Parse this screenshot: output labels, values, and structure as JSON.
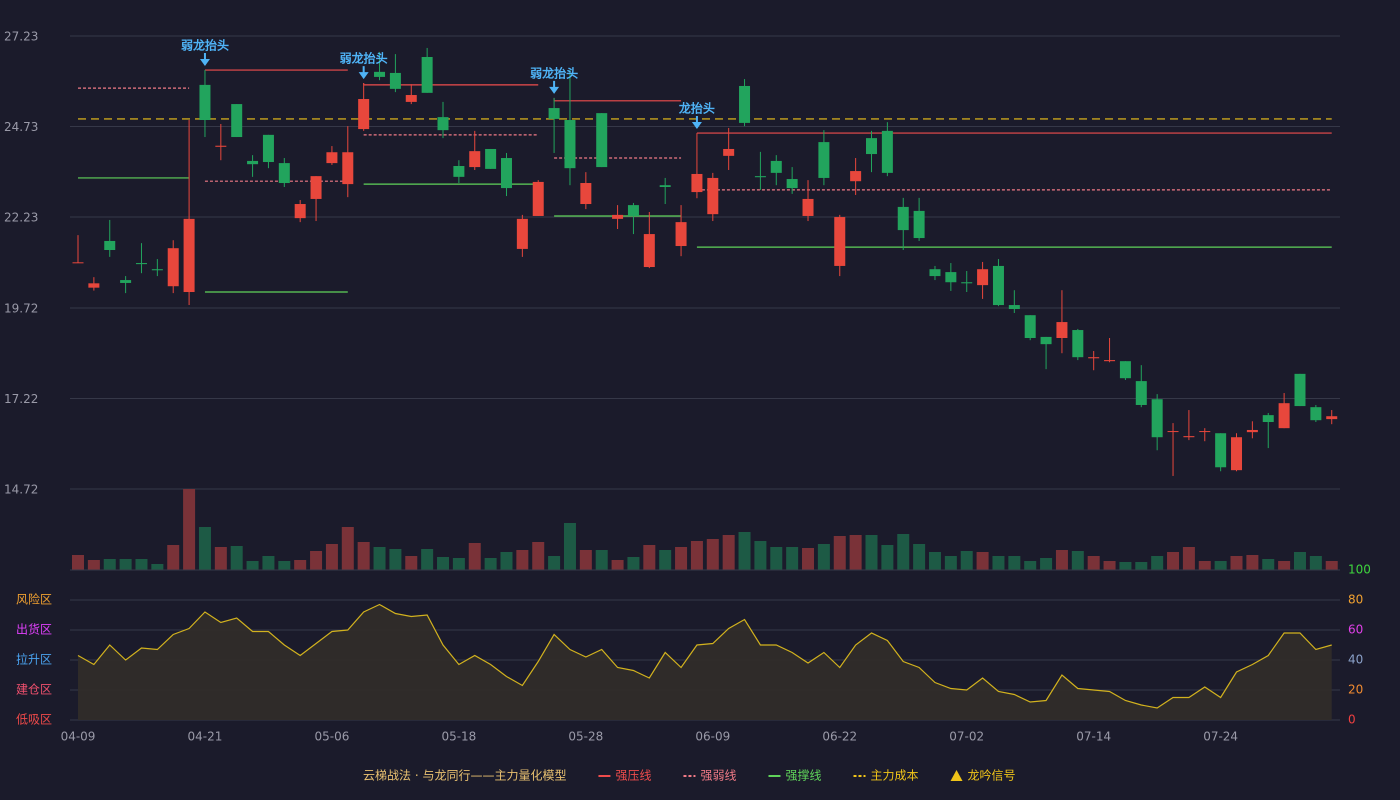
{
  "chart_data": [
    {
      "type": "candlestick",
      "categories": [
        "04-09",
        null,
        null,
        null,
        null,
        null,
        null,
        null,
        "04-21",
        null,
        null,
        null,
        null,
        null,
        null,
        null,
        "05-06",
        null,
        null,
        null,
        null,
        null,
        null,
        null,
        "05-18",
        null,
        null,
        null,
        null,
        null,
        null,
        null,
        "05-28",
        null,
        null,
        null,
        null,
        null,
        null,
        null,
        "06-09",
        null,
        null,
        null,
        null,
        null,
        null,
        null,
        "06-22",
        null,
        null,
        null,
        null,
        null,
        null,
        null,
        "07-02",
        null,
        null,
        null,
        null,
        null,
        null,
        null,
        "07-14",
        null,
        null,
        null,
        null,
        null,
        null,
        null,
        "07-24",
        null,
        null,
        null,
        null,
        null,
        null,
        null
      ],
      "open": [
        20.96,
        20.28,
        21.57,
        20.49,
        20.96,
        20.79,
        20.32,
        20.16,
        25.88,
        24.17,
        25.35,
        23.78,
        24.5,
        23.72,
        22.2,
        22.73,
        23.72,
        23.14,
        24.66,
        26.24,
        26.21,
        25.41,
        26.65,
        24.99,
        23.64,
        23.61,
        24.11,
        23.86,
        21.35,
        22.26,
        25.24,
        24.91,
        22.59,
        25.1,
        22.18,
        22.56,
        20.85,
        23.11,
        21.43,
        22.92,
        22.31,
        23.92,
        25.85,
        23.36,
        23.78,
        23.28,
        22.26,
        24.3,
        20.88,
        23.22,
        24.41,
        24.61,
        22.51,
        22.4,
        20.79,
        20.71,
        20.43,
        20.35,
        20.88,
        19.8,
        19.52,
        18.92,
        18.89,
        19.11,
        18.33,
        18.25,
        18.25,
        17.7,
        17.2,
        16.3,
        16.15,
        16.3,
        16.26,
        15.24,
        16.29,
        16.76,
        16.4,
        17.9,
        16.98,
        16.65
      ],
      "high": [
        21.73,
        20.57,
        22.15,
        20.6,
        21.51,
        21.07,
        21.59,
        24.91,
        26.29,
        24.8,
        25.35,
        23.94,
        24.5,
        23.86,
        22.7,
        23.36,
        24.19,
        24.74,
        25.93,
        26.79,
        26.73,
        25.9,
        26.9,
        25.41,
        23.8,
        24.61,
        24.11,
        24.0,
        22.29,
        23.25,
        25.52,
        26.29,
        23.47,
        25.1,
        22.56,
        22.62,
        22.37,
        23.31,
        22.56,
        24.55,
        23.45,
        24.69,
        26.04,
        24.03,
        23.94,
        23.61,
        23.25,
        24.63,
        22.29,
        23.86,
        24.61,
        24.85,
        22.76,
        22.76,
        20.88,
        20.96,
        20.74,
        20.99,
        21.07,
        20.21,
        19.52,
        18.92,
        20.21,
        19.14,
        18.53,
        18.89,
        18.25,
        18.14,
        17.34,
        16.54,
        16.9,
        16.4,
        16.26,
        16.26,
        16.59,
        16.82,
        17.37,
        17.9,
        17.04,
        16.9
      ],
      "low": [
        20.96,
        20.2,
        21.13,
        20.13,
        20.68,
        20.6,
        20.13,
        19.8,
        24.44,
        23.8,
        24.44,
        23.34,
        23.58,
        23.06,
        22.09,
        22.12,
        23.67,
        22.78,
        24.61,
        26.01,
        25.68,
        25.35,
        25.66,
        24.41,
        23.17,
        23.53,
        23.56,
        22.81,
        21.13,
        22.26,
        24.0,
        23.11,
        22.45,
        23.61,
        21.9,
        21.76,
        20.82,
        22.59,
        21.15,
        22.75,
        22.12,
        23.53,
        24.74,
        22.98,
        23.11,
        22.87,
        22.12,
        23.11,
        20.6,
        22.84,
        23.47,
        23.36,
        21.32,
        21.57,
        20.49,
        20.19,
        20.16,
        19.97,
        19.77,
        19.58,
        18.83,
        18.03,
        18.47,
        18.28,
        18.0,
        18.22,
        17.73,
        16.98,
        15.79,
        15.08,
        16.07,
        16.04,
        15.21,
        15.21,
        16.12,
        15.85,
        16.4,
        17.01,
        16.57,
        16.51
      ],
      "close": [
        20.98,
        20.4,
        21.32,
        20.41,
        20.93,
        20.76,
        21.37,
        22.18,
        24.91,
        24.2,
        24.44,
        23.69,
        23.75,
        23.17,
        22.59,
        23.36,
        24.02,
        24.02,
        25.49,
        26.1,
        25.77,
        25.6,
        25.66,
        24.63,
        23.34,
        24.05,
        23.56,
        23.03,
        22.18,
        23.2,
        24.94,
        23.58,
        23.17,
        23.61,
        22.29,
        22.26,
        21.76,
        23.06,
        22.09,
        23.42,
        23.31,
        24.11,
        24.83,
        23.33,
        23.45,
        23.03,
        22.73,
        23.31,
        22.23,
        23.5,
        23.97,
        23.45,
        21.87,
        21.65,
        20.6,
        20.43,
        20.4,
        20.79,
        19.8,
        19.69,
        18.89,
        18.72,
        19.33,
        18.36,
        18.36,
        18.28,
        17.78,
        17.04,
        16.15,
        16.32,
        16.18,
        16.32,
        15.32,
        16.15,
        16.35,
        16.57,
        17.09,
        17.01,
        16.62,
        16.73
      ],
      "up_color": "#e8473c",
      "down_color": "#22a45d",
      "ylim": [
        14.72,
        27.23
      ],
      "yticks": [
        14.72,
        17.22,
        19.72,
        22.23,
        24.73,
        27.23
      ],
      "grid": true,
      "levels": [
        {
          "name": "强压线",
          "color": "#ef4c4c",
          "dashed": false,
          "connect": true,
          "segments": [
            {
              "start": 8,
              "end": 17,
              "value": 26.29
            },
            {
              "start": 18,
              "end": 29,
              "value": 25.88
            },
            {
              "start": 30,
              "end": 38,
              "value": 25.44
            },
            {
              "start": 39,
              "end": 79,
              "value": 24.55
            }
          ]
        },
        {
          "name": "强弱线",
          "color": "#f07a86",
          "dashed": true,
          "connect": false,
          "segments": [
            {
              "start": 0,
              "end": 7,
              "value": 25.79
            },
            {
              "start": 8,
              "end": 17,
              "value": 23.22
            },
            {
              "start": 18,
              "end": 29,
              "value": 24.5
            },
            {
              "start": 30,
              "end": 38,
              "value": 23.86
            },
            {
              "start": 39,
              "end": 79,
              "value": 22.98
            }
          ]
        },
        {
          "name": "强撑线",
          "color": "#5fd35a",
          "dashed": false,
          "connect": false,
          "segments": [
            {
              "start": 0,
              "end": 7,
              "value": 23.31
            },
            {
              "start": 8,
              "end": 17,
              "value": 20.16
            },
            {
              "start": 18,
              "end": 29,
              "value": 23.14
            },
            {
              "start": 30,
              "end": 38,
              "value": 22.26
            },
            {
              "start": 39,
              "end": 79,
              "value": 21.4
            }
          ]
        },
        {
          "name": "主力成本",
          "color": "#f0c419",
          "dashed": true,
          "connect": false,
          "segments": [
            {
              "start": 0,
              "end": 79,
              "value": 24.94
            }
          ]
        }
      ],
      "signals": {
        "name": "龙吟信号",
        "legend_color": "#f0c419",
        "color": "#4fb3f6",
        "points": [
          {
            "index": 8,
            "label": "弱龙抬头"
          },
          {
            "index": 18,
            "label": "弱龙抬头"
          },
          {
            "index": 30,
            "label": "弱龙抬头"
          },
          {
            "index": 39,
            "label": "龙抬头"
          }
        ]
      }
    },
    {
      "type": "bar",
      "values": [
        15,
        10,
        11,
        11,
        11,
        6,
        25,
        81,
        43,
        23,
        24,
        9,
        14,
        9,
        10,
        19,
        26,
        43,
        28,
        23,
        21,
        14,
        21,
        13,
        12,
        27,
        12,
        18,
        20,
        28,
        14,
        47,
        20,
        20,
        10,
        13,
        25,
        20,
        23,
        29,
        31,
        35,
        38,
        29,
        23,
        23,
        22,
        26,
        34,
        35,
        35,
        25,
        36,
        26,
        18,
        14,
        19,
        18,
        14,
        14,
        9,
        12,
        20,
        19,
        14,
        9,
        8,
        8,
        14,
        18,
        23,
        9,
        9,
        14,
        15,
        11,
        9,
        18,
        14,
        9
      ],
      "up_color": "#7a3238",
      "down_color": "#1d5a45"
    },
    {
      "type": "area",
      "values": [
        43,
        37,
        50,
        40,
        48,
        47,
        57,
        61,
        72,
        65,
        68,
        59,
        59,
        50,
        43,
        51,
        59,
        60,
        72,
        77,
        71,
        69,
        70,
        50,
        37,
        43,
        37,
        29,
        23,
        39,
        57,
        47,
        42,
        47,
        35,
        33,
        28,
        45,
        35,
        50,
        51,
        61,
        67,
        50,
        50,
        45,
        38,
        45,
        35,
        50,
        58,
        53,
        39,
        35,
        25,
        21,
        20,
        28,
        19,
        17,
        12,
        13,
        30,
        21,
        20,
        19,
        13,
        10,
        8,
        15,
        15,
        22,
        15,
        32,
        37,
        43,
        58,
        58,
        47,
        50
      ],
      "color": "#d2b21e",
      "fill": "#322e29",
      "ylim": [
        0,
        100
      ],
      "yticks": [
        0,
        20,
        40,
        60,
        80,
        100
      ],
      "ytick_colors": [
        "#f04040",
        "#f08a30",
        "#8aa0c8",
        "#e040e8",
        "#f0a030",
        "#3ed43e"
      ],
      "zones": [
        {
          "value": 0,
          "label": "低吸区",
          "color": "#f04a4a"
        },
        {
          "value": 20,
          "label": "建仓区",
          "color": "#f0506e"
        },
        {
          "value": 40,
          "label": "拉升区",
          "color": "#4aa3f0"
        },
        {
          "value": 60,
          "label": "出货区",
          "color": "#e040fb"
        },
        {
          "value": 80,
          "label": "风险区",
          "color": "#f0a030"
        }
      ]
    }
  ],
  "legend": {
    "title": "云梯战法 · 与龙同行——主力量化模型",
    "title_color": "#e8c070"
  }
}
